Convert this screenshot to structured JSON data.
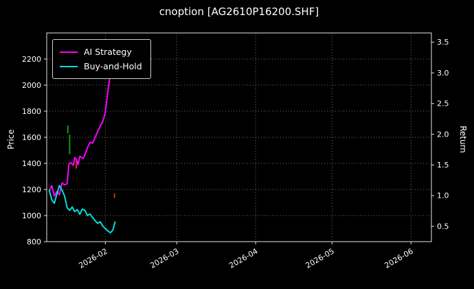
{
  "title": "cnoption [AG2610P16200.SHF]",
  "axes": {
    "left_label": "Price",
    "right_label": "Return"
  },
  "legend": {
    "position": "upper left",
    "items": [
      {
        "label": "AI Strategy",
        "color": "#ff00ff"
      },
      {
        "label": "Buy-and-Hold",
        "color": "#00e0e0"
      }
    ]
  },
  "colors": {
    "background": "#000000",
    "text": "#ffffff",
    "axis": "#e8e8e8",
    "grid": "#9a9a9a",
    "ai_strategy": "#ff00ff",
    "buy_and_hold": "#00e0e0",
    "buy_signal": "#0f9b0f",
    "sell_signal": "#cc3322"
  },
  "chart_data": {
    "type": "line",
    "title": "cnoption [AG2610P16200.SHF]",
    "grid": true,
    "background": "#000000",
    "legend_position": "upper left",
    "x_axis": {
      "tick_labels": [
        "2026-02",
        "2026-03",
        "2026-04",
        "2026-05",
        "2026-06"
      ],
      "tick_days": [
        23,
        51,
        82,
        112,
        143
      ],
      "domain_days": [
        0,
        151
      ]
    },
    "price_axis": {
      "label": "Price",
      "ticks": [
        800,
        1000,
        1200,
        1400,
        1600,
        1800,
        2000,
        2200
      ],
      "lim": [
        800,
        2400
      ]
    },
    "return_axis": {
      "label": "Return",
      "ticks": [
        0.5,
        1.0,
        1.5,
        2.0,
        2.5,
        3.0,
        3.5
      ],
      "lim": [
        0.25,
        3.65
      ]
    },
    "series": [
      {
        "name": "AI Strategy",
        "color": "#ff00ff",
        "days": [
          1,
          2,
          3,
          4,
          5,
          6,
          7,
          8,
          8.7,
          9.5,
          10.5,
          11,
          11.7,
          12.3,
          13,
          13.7,
          14.4,
          15,
          16,
          17,
          18,
          19,
          20,
          21,
          22,
          23,
          24,
          25,
          25.7,
          26.3
        ],
        "prices": [
          1190,
          1230,
          1150,
          1185,
          1160,
          1250,
          1235,
          1245,
          1395,
          1405,
          1385,
          1445,
          1430,
          1390,
          1455,
          1445,
          1440,
          1465,
          1520,
          1560,
          1555,
          1600,
          1645,
          1685,
          1720,
          1790,
          1950,
          2100,
          2200,
          2260
        ]
      },
      {
        "name": "Buy-and-Hold",
        "color": "#00e0e0",
        "days": [
          1,
          2,
          3,
          4,
          5,
          6,
          7,
          8,
          9,
          10,
          11,
          12,
          13,
          14,
          15,
          16,
          17,
          18,
          19,
          20,
          21,
          22,
          23,
          24,
          25,
          26,
          26.8
        ],
        "prices": [
          1195,
          1120,
          1095,
          1165,
          1230,
          1195,
          1150,
          1060,
          1040,
          1065,
          1030,
          1045,
          1010,
          1050,
          1040,
          1000,
          1012,
          985,
          960,
          940,
          952,
          920,
          900,
          882,
          868,
          890,
          950
        ]
      }
    ],
    "signals": {
      "buy": {
        "color": "#0f9b0f",
        "marks": [
          {
            "day": 8.3,
            "from": 1630,
            "to": 1690
          },
          {
            "day": 9.0,
            "from": 1470,
            "to": 1620
          }
        ]
      },
      "sell": {
        "color": "#cc3322",
        "marks": [
          {
            "day": 11.6,
            "from": 1360,
            "to": 1425
          },
          {
            "day": 26.6,
            "from": 1135,
            "to": 1170
          }
        ]
      }
    }
  }
}
